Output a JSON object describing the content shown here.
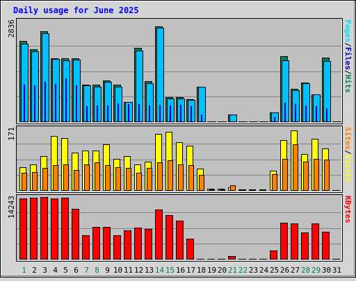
{
  "chart_data": {
    "title": "Daily usage for June 2025",
    "type": "bar",
    "days": [
      "1",
      "2",
      "3",
      "4",
      "5",
      "6",
      "7",
      "8",
      "9",
      "10",
      "11",
      "12",
      "13",
      "14",
      "15",
      "16",
      "17",
      "18",
      "19",
      "20",
      "21",
      "22",
      "23",
      "24",
      "25",
      "26",
      "27",
      "28",
      "29",
      "30",
      "31"
    ],
    "weekend_days": [
      "1",
      "7",
      "8",
      "14",
      "15",
      "21",
      "22",
      "28",
      "29"
    ],
    "panels": [
      {
        "id": "hits-files-pages",
        "ymax_label": "2836",
        "ymax": 2836,
        "side_label_parts": [
          "Pages",
          "/",
          "Files",
          "/",
          "Hits"
        ],
        "series": [
          {
            "name": "Hits",
            "values": [
              2280,
              2040,
              2540,
              1780,
              1790,
              1780,
              1040,
              1040,
              1170,
              1040,
              570,
              2080,
              1140,
              2690,
              690,
              690,
              640,
              1000,
              0,
              0,
              220,
              0,
              0,
              0,
              280,
              1840,
              930,
              1110,
              780,
              1800,
              0
            ]
          },
          {
            "name": "Files",
            "values": [
              2200,
              1980,
              2480,
              1760,
              1720,
              1750,
              1020,
              1000,
              1120,
              1000,
              560,
              2000,
              1080,
              2640,
              670,
              660,
              620,
              990,
              0,
              0,
              210,
              0,
              0,
              0,
              270,
              1720,
              900,
              1080,
              770,
              1700,
              0
            ]
          },
          {
            "name": "Pages",
            "values": [
              1040,
              1020,
              1120,
              1060,
              1220,
              1020,
              450,
              460,
              460,
              530,
              500,
              510,
              470,
              480,
              470,
              480,
              450,
              210,
              0,
              0,
              0,
              0,
              0,
              0,
              130,
              550,
              510,
              460,
              450,
              380,
              0
            ]
          }
        ]
      },
      {
        "id": "visits-sites",
        "ymax_label": "171",
        "ymax": 171,
        "side_label_parts": [
          "Sites",
          "/",
          "Visits"
        ],
        "series": [
          {
            "name": "Visits",
            "values": [
              65,
              72,
              95,
              151,
              145,
              105,
              110,
              110,
              128,
              88,
              95,
              72,
              80,
              155,
              162,
              133,
              123,
              60,
              5,
              5,
              10,
              4,
              4,
              4,
              56,
              138,
              166,
              101,
              142,
              115,
              0
            ]
          },
          {
            "name": "Sites",
            "values": [
              50,
              52,
              62,
              70,
              72,
              57,
              72,
              77,
              70,
              65,
              62,
              50,
              62,
              77,
              83,
              72,
              70,
              43,
              3,
              3,
              15,
              3,
              2,
              2,
              46,
              87,
              127,
              80,
              87,
              86,
              0
            ]
          }
        ]
      },
      {
        "id": "kbytes",
        "ymax_label": "14243",
        "ymax": 14243,
        "side_label_parts": [
          "KBytes"
        ],
        "series": [
          {
            "name": "KBytes",
            "values": [
              13900,
              14100,
              14243,
              13900,
              14150,
              11500,
              5600,
              7400,
              7400,
              5500,
              6700,
              7300,
              6900,
              11400,
              10200,
              8900,
              4800,
              0,
              0,
              0,
              780,
              0,
              0,
              0,
              2000,
              8400,
              8300,
              6100,
              8200,
              6400,
              0
            ]
          }
        ]
      }
    ],
    "colors": {
      "title": "#0000ff",
      "hits": "#00805c",
      "files": "#00c0ff",
      "pages": "#00e0ff",
      "pages_inner": "#0000c8",
      "visits": "#ffff00",
      "sites": "#ff8000",
      "kbytes": "#ff0000",
      "weekday": "#000000",
      "weekend": "#00805c",
      "panel_bg": "#c0c0c0",
      "page_bg": "#d4d4d4"
    }
  }
}
